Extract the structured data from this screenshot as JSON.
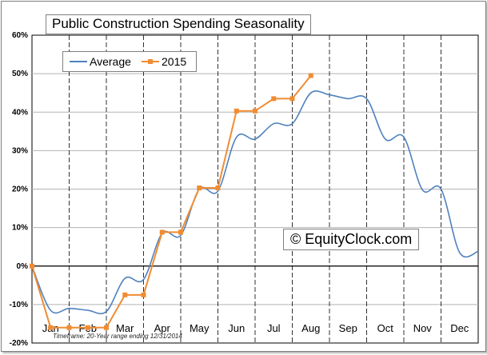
{
  "chart_data": {
    "type": "line",
    "title": "Public Construction Spending Seasonality",
    "xlabel": "",
    "ylabel": "",
    "categories": [
      "Jan",
      "Feb",
      "Mar",
      "Apr",
      "May",
      "Jun",
      "Jul",
      "Aug",
      "Sep",
      "Oct",
      "Nov",
      "Dec"
    ],
    "y_ticks": [
      "-20%",
      "-10%",
      "0%",
      "10%",
      "20%",
      "30%",
      "40%",
      "50%",
      "60%"
    ],
    "ylim": [
      -20,
      60
    ],
    "grid": true,
    "legend_position": "top-left",
    "series": [
      {
        "name": "Average",
        "color": "#4f81bd",
        "x": [
          0,
          0.5,
          1,
          1.5,
          2,
          2.5,
          3,
          3.5,
          4,
          4.5,
          5,
          5.5,
          6,
          6.5,
          7,
          7.5,
          8,
          8.5,
          9,
          9.5,
          10,
          10.5,
          11,
          11.5,
          12
        ],
        "values": [
          0,
          -11.5,
          -11.0,
          -11.5,
          -11.8,
          -3.2,
          -3.5,
          8.5,
          8.0,
          20.0,
          19.5,
          33.5,
          33.0,
          37.0,
          37.0,
          45.0,
          44.5,
          43.5,
          43.5,
          33.0,
          33.5,
          19.8,
          20.0,
          3.5,
          3.8
        ]
      },
      {
        "name": "2015",
        "color": "#f08c32",
        "x": [
          0,
          0.5,
          1,
          1.5,
          2,
          2.5,
          3,
          3.5,
          4,
          4.5,
          5,
          5.5,
          6,
          6.5,
          7,
          7.5
        ],
        "values": [
          0,
          -16.0,
          -16.0,
          -16.0,
          -16.0,
          -7.5,
          -7.5,
          8.8,
          8.8,
          20.3,
          20.3,
          40.3,
          40.3,
          43.5,
          43.5,
          49.5
        ]
      }
    ]
  },
  "title": "Public Construction Spending Seasonality",
  "legend": {
    "average": "Average",
    "y2015": "2015"
  },
  "watermark": "© EquityClock.com",
  "footnote": "Timeframe: 20-Year range ending 12/31/2014"
}
